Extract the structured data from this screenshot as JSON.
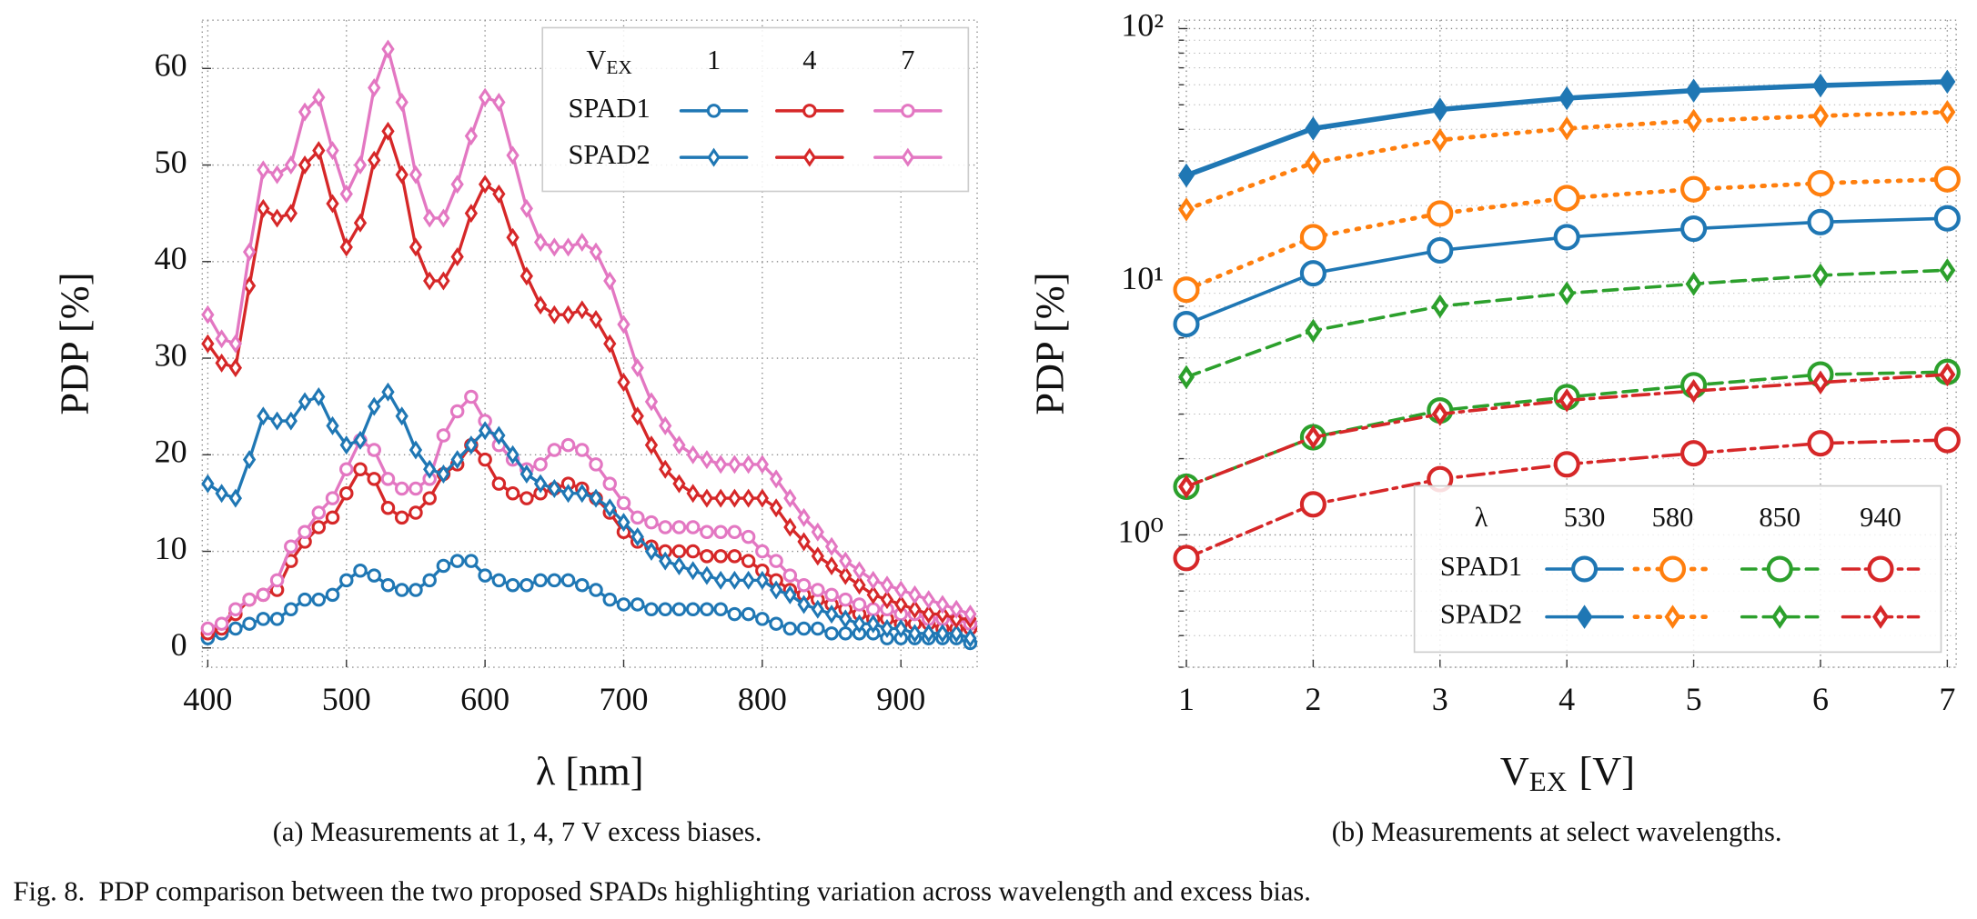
{
  "chart_data": [
    {
      "type": "line",
      "caption": "(a) Measurements at 1, 4, 7 V excess biases.",
      "x_label": "λ [nm]",
      "y_label": "PDP [%]",
      "xlim": [
        396,
        955
      ],
      "ylim": [
        -2,
        65
      ],
      "xticks": [
        400,
        500,
        600,
        700,
        800,
        900
      ],
      "yticks": [
        0,
        10,
        20,
        30,
        40,
        50,
        60
      ],
      "grid": true,
      "legend": {
        "title": {
          "main": "V",
          "sub": "EX"
        },
        "columns": [
          "1",
          "4",
          "7"
        ],
        "corner": "upper right"
      },
      "x": [
        400,
        410,
        420,
        430,
        440,
        450,
        460,
        470,
        480,
        490,
        500,
        510,
        520,
        530,
        540,
        550,
        560,
        570,
        580,
        590,
        600,
        610,
        620,
        630,
        640,
        650,
        660,
        670,
        680,
        690,
        700,
        710,
        720,
        730,
        740,
        750,
        760,
        770,
        780,
        790,
        800,
        810,
        820,
        830,
        840,
        850,
        860,
        870,
        880,
        890,
        900,
        910,
        920,
        930,
        940,
        950
      ],
      "series": [
        {
          "name": "SPAD1",
          "marker": "circle",
          "lines": [
            {
              "color": "#1f77b4",
              "values": [
                1,
                1.5,
                2,
                2.5,
                3,
                3,
                4,
                5,
                5,
                5.5,
                7,
                8,
                7.5,
                6.5,
                6,
                6,
                7,
                8.5,
                9,
                9,
                7.5,
                7,
                6.5,
                6.5,
                7,
                7,
                7,
                6.5,
                6,
                5,
                4.5,
                4.5,
                4,
                4,
                4,
                4,
                4,
                4,
                3.5,
                3.5,
                3,
                2.5,
                2,
                2,
                2,
                1.5,
                1.5,
                1.5,
                1.5,
                1,
                1,
                1,
                1,
                1,
                1,
                0.5
              ]
            },
            {
              "color": "#d62728",
              "values": [
                1.5,
                2,
                3.5,
                5,
                5.5,
                6,
                9,
                11,
                12.5,
                13.5,
                16,
                18.5,
                17.5,
                14.5,
                13.5,
                14,
                15.5,
                18,
                19,
                21,
                19.5,
                17,
                16,
                15.5,
                16,
                16.5,
                17,
                16.5,
                15.5,
                14,
                12,
                11,
                10.5,
                10,
                10,
                10,
                9.5,
                9.5,
                9.5,
                9,
                8,
                7,
                6,
                5.5,
                5,
                4.5,
                4,
                3.5,
                3,
                3,
                2.5,
                2.5,
                2.5,
                2,
                2,
                2
              ]
            },
            {
              "color": "#e377c2",
              "values": [
                2,
                2.5,
                4,
                5,
                5.5,
                7,
                10.5,
                12,
                14,
                15.5,
                18.5,
                21.5,
                20.5,
                17.5,
                16.5,
                16.5,
                17.5,
                22,
                24.5,
                26,
                23.5,
                21,
                19.5,
                18.5,
                19,
                20.5,
                21,
                20.5,
                19,
                17,
                15,
                13.5,
                13,
                12.5,
                12.5,
                12.5,
                12,
                12,
                12,
                11.5,
                10,
                9,
                7.5,
                6.5,
                6,
                5.5,
                5,
                4.5,
                4,
                4,
                3.5,
                3.5,
                3,
                3,
                3,
                2.5
              ]
            }
          ]
        },
        {
          "name": "SPAD2",
          "marker": "diamond",
          "lines": [
            {
              "color": "#1f77b4",
              "values": [
                17,
                16,
                15.5,
                19.5,
                24,
                23.5,
                23.5,
                25.5,
                26,
                23,
                21,
                21.5,
                25,
                26.5,
                24,
                20.5,
                18.5,
                18,
                19.5,
                21,
                22.5,
                22,
                20,
                18,
                17,
                16.5,
                16,
                16,
                15.5,
                14.5,
                13,
                11.5,
                10,
                9,
                8.5,
                8,
                7.5,
                7,
                7,
                7,
                7,
                6,
                5.5,
                4.5,
                4,
                3.5,
                3,
                2.5,
                2.5,
                2,
                2,
                1.5,
                1.5,
                1.5,
                1.5,
                1
              ]
            },
            {
              "color": "#d62728",
              "values": [
                31.5,
                29.5,
                29,
                37.5,
                45.5,
                44.5,
                45,
                50,
                51.5,
                46,
                41.5,
                44,
                50.5,
                53.5,
                49,
                41.5,
                38,
                38,
                40.5,
                45,
                48,
                47,
                42.5,
                38.5,
                35.5,
                34.5,
                34.5,
                35,
                34,
                31.5,
                27.5,
                24,
                21,
                18.5,
                17,
                16,
                15.5,
                15.5,
                15.5,
                15.5,
                15.5,
                14.5,
                12.5,
                11,
                9.5,
                8.5,
                7.5,
                6.5,
                5.5,
                5,
                4.5,
                4,
                3.5,
                3.5,
                3,
                3
              ]
            },
            {
              "color": "#e377c2",
              "values": [
                34.5,
                32,
                31.5,
                41,
                49.5,
                49,
                50,
                55.5,
                57,
                51.5,
                47,
                50,
                58,
                62,
                56.5,
                49,
                44.5,
                44.5,
                48,
                53,
                57,
                56.5,
                51,
                45.5,
                42,
                41.5,
                41.5,
                42,
                41,
                38,
                33.5,
                29,
                25.5,
                23,
                21,
                20,
                19.5,
                19,
                19,
                19,
                19,
                17.5,
                15.5,
                13.5,
                12,
                10.5,
                9,
                8,
                7,
                6.5,
                6,
                5.5,
                5,
                4.5,
                4,
                3.5
              ]
            }
          ]
        }
      ]
    },
    {
      "type": "line",
      "caption": "(b) Measurements at select wavelengths.",
      "x_label": {
        "main": "V",
        "sub": "EX",
        "rest": "[V]"
      },
      "y_label": "PDP [%]",
      "yscale": "log",
      "xlim": [
        0.94,
        7.07
      ],
      "ylim": [
        0.3,
        108
      ],
      "xticks": [
        1,
        2,
        3,
        4,
        5,
        6,
        7
      ],
      "yticks": [
        {
          "value": 1,
          "label": "10⁰"
        },
        {
          "value": 10,
          "label": "10¹"
        },
        {
          "value": 100,
          "label": "10²"
        }
      ],
      "yminor": [
        0.3,
        0.4,
        0.5,
        0.6,
        0.7,
        0.8,
        0.9,
        2,
        3,
        4,
        5,
        6,
        7,
        8,
        9,
        20,
        30,
        40,
        50,
        60,
        70,
        80,
        90
      ],
      "grid": true,
      "legend": {
        "title": "λ",
        "columns": [
          "530",
          "580",
          "850",
          "940"
        ],
        "corner": "lower right"
      },
      "x": [
        1,
        2,
        3,
        4,
        5,
        6,
        7
      ],
      "series": [
        {
          "name": "SPAD1",
          "marker": "circle",
          "lines": [
            {
              "color": "#1f77b4",
              "dash": "solid",
              "values": [
                6.8,
                10.8,
                13.3,
                15.0,
                16.2,
                17.2,
                17.8
              ]
            },
            {
              "color": "#ff7f0e",
              "dash": "dotted",
              "values": [
                9.3,
                15.0,
                18.6,
                21.4,
                23.2,
                24.5,
                25.4
              ]
            },
            {
              "color": "#2ca02c",
              "dash": "dashed",
              "values": [
                1.55,
                2.43,
                3.1,
                3.5,
                3.9,
                4.3,
                4.4
              ]
            },
            {
              "color": "#d62728",
              "dash": "dashdot",
              "values": [
                0.81,
                1.32,
                1.66,
                1.9,
                2.1,
                2.3,
                2.37
              ]
            }
          ]
        },
        {
          "name": "SPAD2",
          "marker": "diamond",
          "lines": [
            {
              "color": "#1f77b4",
              "dash": "solid",
              "values": [
                26.3,
                40.3,
                47.9,
                53.1,
                56.9,
                59.6,
                61.7
              ]
            },
            {
              "color": "#ff7f0e",
              "dash": "dotted",
              "values": [
                19.3,
                29.5,
                36.3,
                40.3,
                43.2,
                45.2,
                46.8
              ]
            },
            {
              "color": "#2ca02c",
              "dash": "dashed",
              "values": [
                4.2,
                6.4,
                8.0,
                9.0,
                9.8,
                10.6,
                11.1
              ]
            },
            {
              "color": "#d62728",
              "dash": "dashdot",
              "values": [
                1.55,
                2.43,
                3.0,
                3.4,
                3.7,
                4.0,
                4.3
              ]
            }
          ]
        }
      ]
    }
  ],
  "figure_caption": "Fig. 8.  PDP comparison between the two proposed SPADs highlighting variation across wavelength and excess bias."
}
